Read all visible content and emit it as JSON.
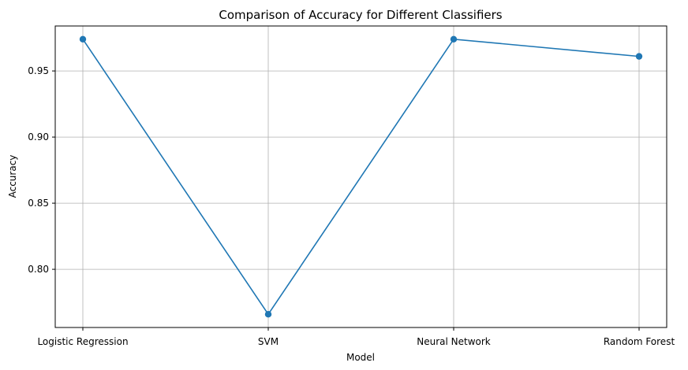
{
  "chart_data": {
    "type": "line",
    "title": "Comparison of Accuracy for Different Classifiers",
    "xlabel": "Model",
    "ylabel": "Accuracy",
    "categories": [
      "Logistic Regression",
      "SVM",
      "Neural Network",
      "Random Forest"
    ],
    "values": [
      0.974,
      0.766,
      0.974,
      0.961
    ],
    "yticks": [
      0.8,
      0.85,
      0.9,
      0.95
    ],
    "ytick_labels": [
      "0.80",
      "0.85",
      "0.90",
      "0.95"
    ],
    "ylim": [
      0.756,
      0.984
    ],
    "grid": true,
    "marker": "circle",
    "color": "#1f77b4"
  }
}
